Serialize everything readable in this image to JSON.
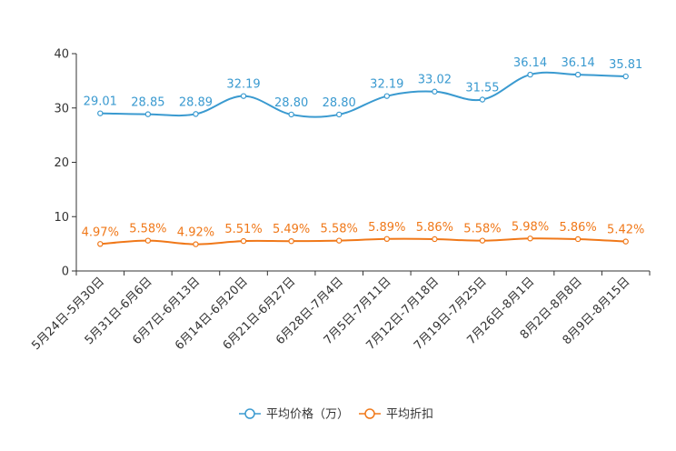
{
  "chart_data": {
    "type": "line",
    "title": "",
    "xlabel": "",
    "ylabel": "",
    "ylim": [
      0,
      40
    ],
    "yticks": [
      0,
      10,
      20,
      30,
      40
    ],
    "grid": false,
    "legend_position": "bottom-center",
    "categories": [
      "5月24日-5月30日",
      "5月31日-6月6日",
      "6月7日-6月13日",
      "6月14日-6月20日",
      "6月21日-6月27日",
      "6月28日-7月4日",
      "7月5日-7月11日",
      "7月12日-7月18日",
      "7月19日-7月25日",
      "7月26日-8月1日",
      "8月2日-8月8日",
      "8月9日-8月15日"
    ],
    "series": [
      {
        "name": "平均价格（万）",
        "color": "#3a9ad0",
        "values": [
          29.01,
          28.85,
          28.89,
          32.19,
          28.8,
          28.8,
          32.19,
          33.02,
          31.55,
          36.14,
          36.14,
          35.81
        ],
        "labels": [
          "29.01",
          "28.85",
          "28.89",
          "32.19",
          "28.80",
          "28.80",
          "32.19",
          "33.02",
          "31.55",
          "36.14",
          "36.14",
          "35.81"
        ]
      },
      {
        "name": "平均折扣",
        "color": "#f07819",
        "values": [
          4.97,
          5.58,
          4.92,
          5.51,
          5.49,
          5.58,
          5.89,
          5.86,
          5.58,
          5.98,
          5.86,
          5.42
        ],
        "labels": [
          "4.97%",
          "5.58%",
          "4.92%",
          "5.51%",
          "5.49%",
          "5.58%",
          "5.89%",
          "5.86%",
          "5.58%",
          "5.98%",
          "5.86%",
          "5.42%"
        ]
      }
    ]
  }
}
